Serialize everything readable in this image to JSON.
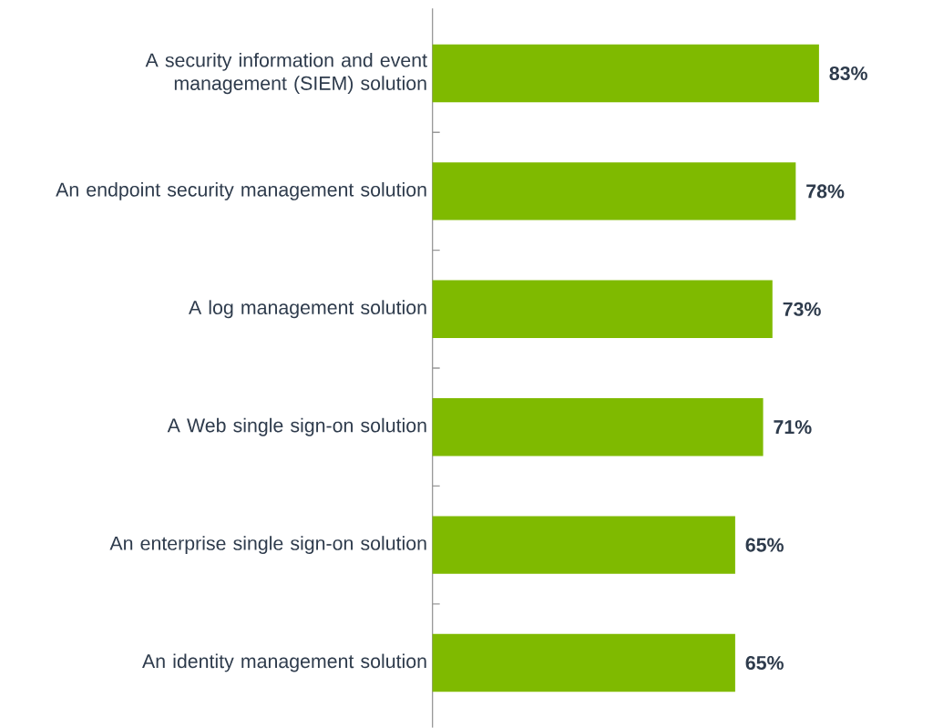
{
  "chart_data": {
    "type": "bar",
    "orientation": "horizontal",
    "categories": [
      "A security information and event management (SIEM) solution",
      "An endpoint security management solution",
      "A log management solution",
      "A Web single sign-on solution",
      "An enterprise single sign-on solution",
      "An identity management solution"
    ],
    "values": [
      83,
      78,
      73,
      71,
      65,
      65
    ],
    "value_labels": [
      "83%",
      "78%",
      "73%",
      "71%",
      "65%",
      "65%"
    ],
    "color": "#7fba00"
  }
}
